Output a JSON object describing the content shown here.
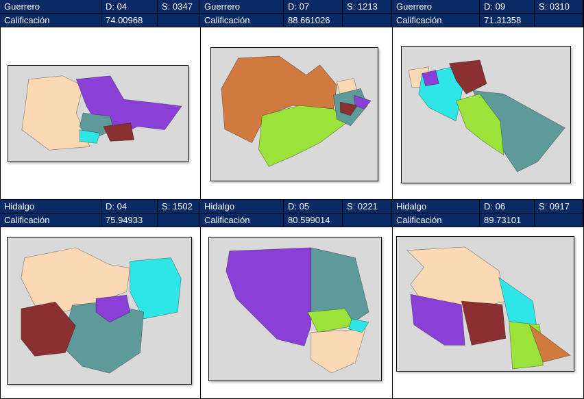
{
  "label_score": "Calificación",
  "panels": [
    {
      "state": "Guerrero",
      "district": "D: 04",
      "section": "S: 0347",
      "score": "74.00968"
    },
    {
      "state": "Guerrero",
      "district": "D: 07",
      "section": "S: 1213",
      "score": "88.661026"
    },
    {
      "state": "Guerrero",
      "district": "D: 09",
      "section": "S: 0310",
      "score": "71.31358"
    },
    {
      "state": "Hidalgo",
      "district": "D: 04",
      "section": "S: 1502",
      "score": "75.94933"
    },
    {
      "state": "Hidalgo",
      "district": "D: 05",
      "section": "S: 0221",
      "score": "80.599014"
    },
    {
      "state": "Hidalgo",
      "district": "D: 06",
      "section": "S: 0917",
      "score": "89.73101"
    }
  ],
  "colors": {
    "header": "#0a2a66",
    "peach": "#fbd9b5",
    "purple": "#8a3fd6",
    "teal": "#5f9a9a",
    "cyan": "#2ee6e6",
    "maroon": "#8b3030",
    "orange": "#d07a40",
    "green": "#9be33a",
    "map_bg": "#d9d9d9"
  }
}
